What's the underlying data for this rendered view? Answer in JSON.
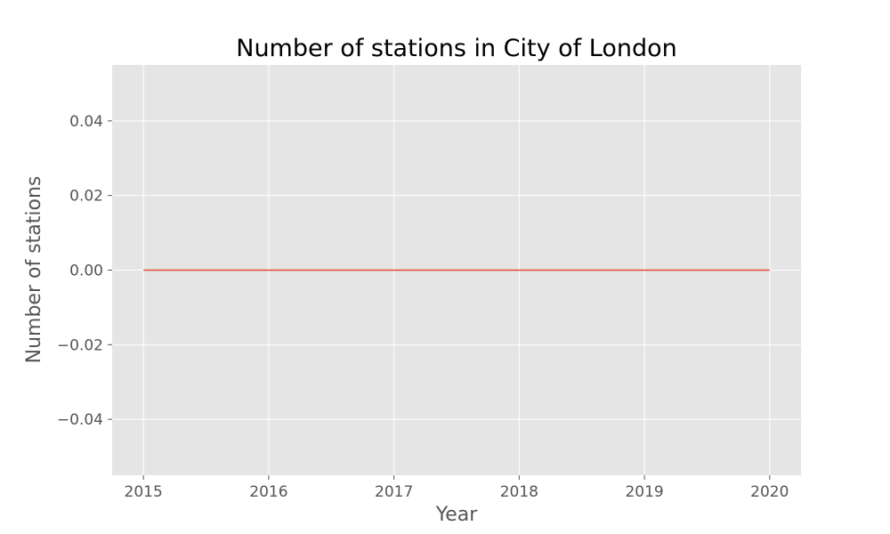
{
  "chart_data": {
    "type": "line",
    "title": "Number of stations in City of London",
    "xlabel": "Year",
    "ylabel": "Number of stations",
    "x": [
      2015,
      2016,
      2017,
      2018,
      2019,
      2020
    ],
    "series": [
      {
        "values": [
          0,
          0,
          0,
          0,
          0,
          0
        ]
      }
    ],
    "xlim": [
      2014.75,
      2020.25
    ],
    "ylim": [
      -0.055,
      0.055
    ],
    "xticks": [
      2015,
      2016,
      2017,
      2018,
      2019,
      2020
    ],
    "xtick_labels": [
      "2015",
      "2016",
      "2017",
      "2018",
      "2019",
      "2020"
    ],
    "yticks": [
      -0.04,
      -0.02,
      0.0,
      0.02,
      0.04
    ],
    "ytick_labels": [
      "−0.04",
      "−0.02",
      "0.00",
      "0.02",
      "0.04"
    ],
    "grid": true,
    "legend": "none",
    "colors": {
      "background": "#ffffff",
      "plot_background": "#e5e5e5",
      "grid": "#ffffff",
      "line": "#e24a33",
      "tick_text": "#555555",
      "label_text": "#555555",
      "title_text": "#000000"
    }
  }
}
